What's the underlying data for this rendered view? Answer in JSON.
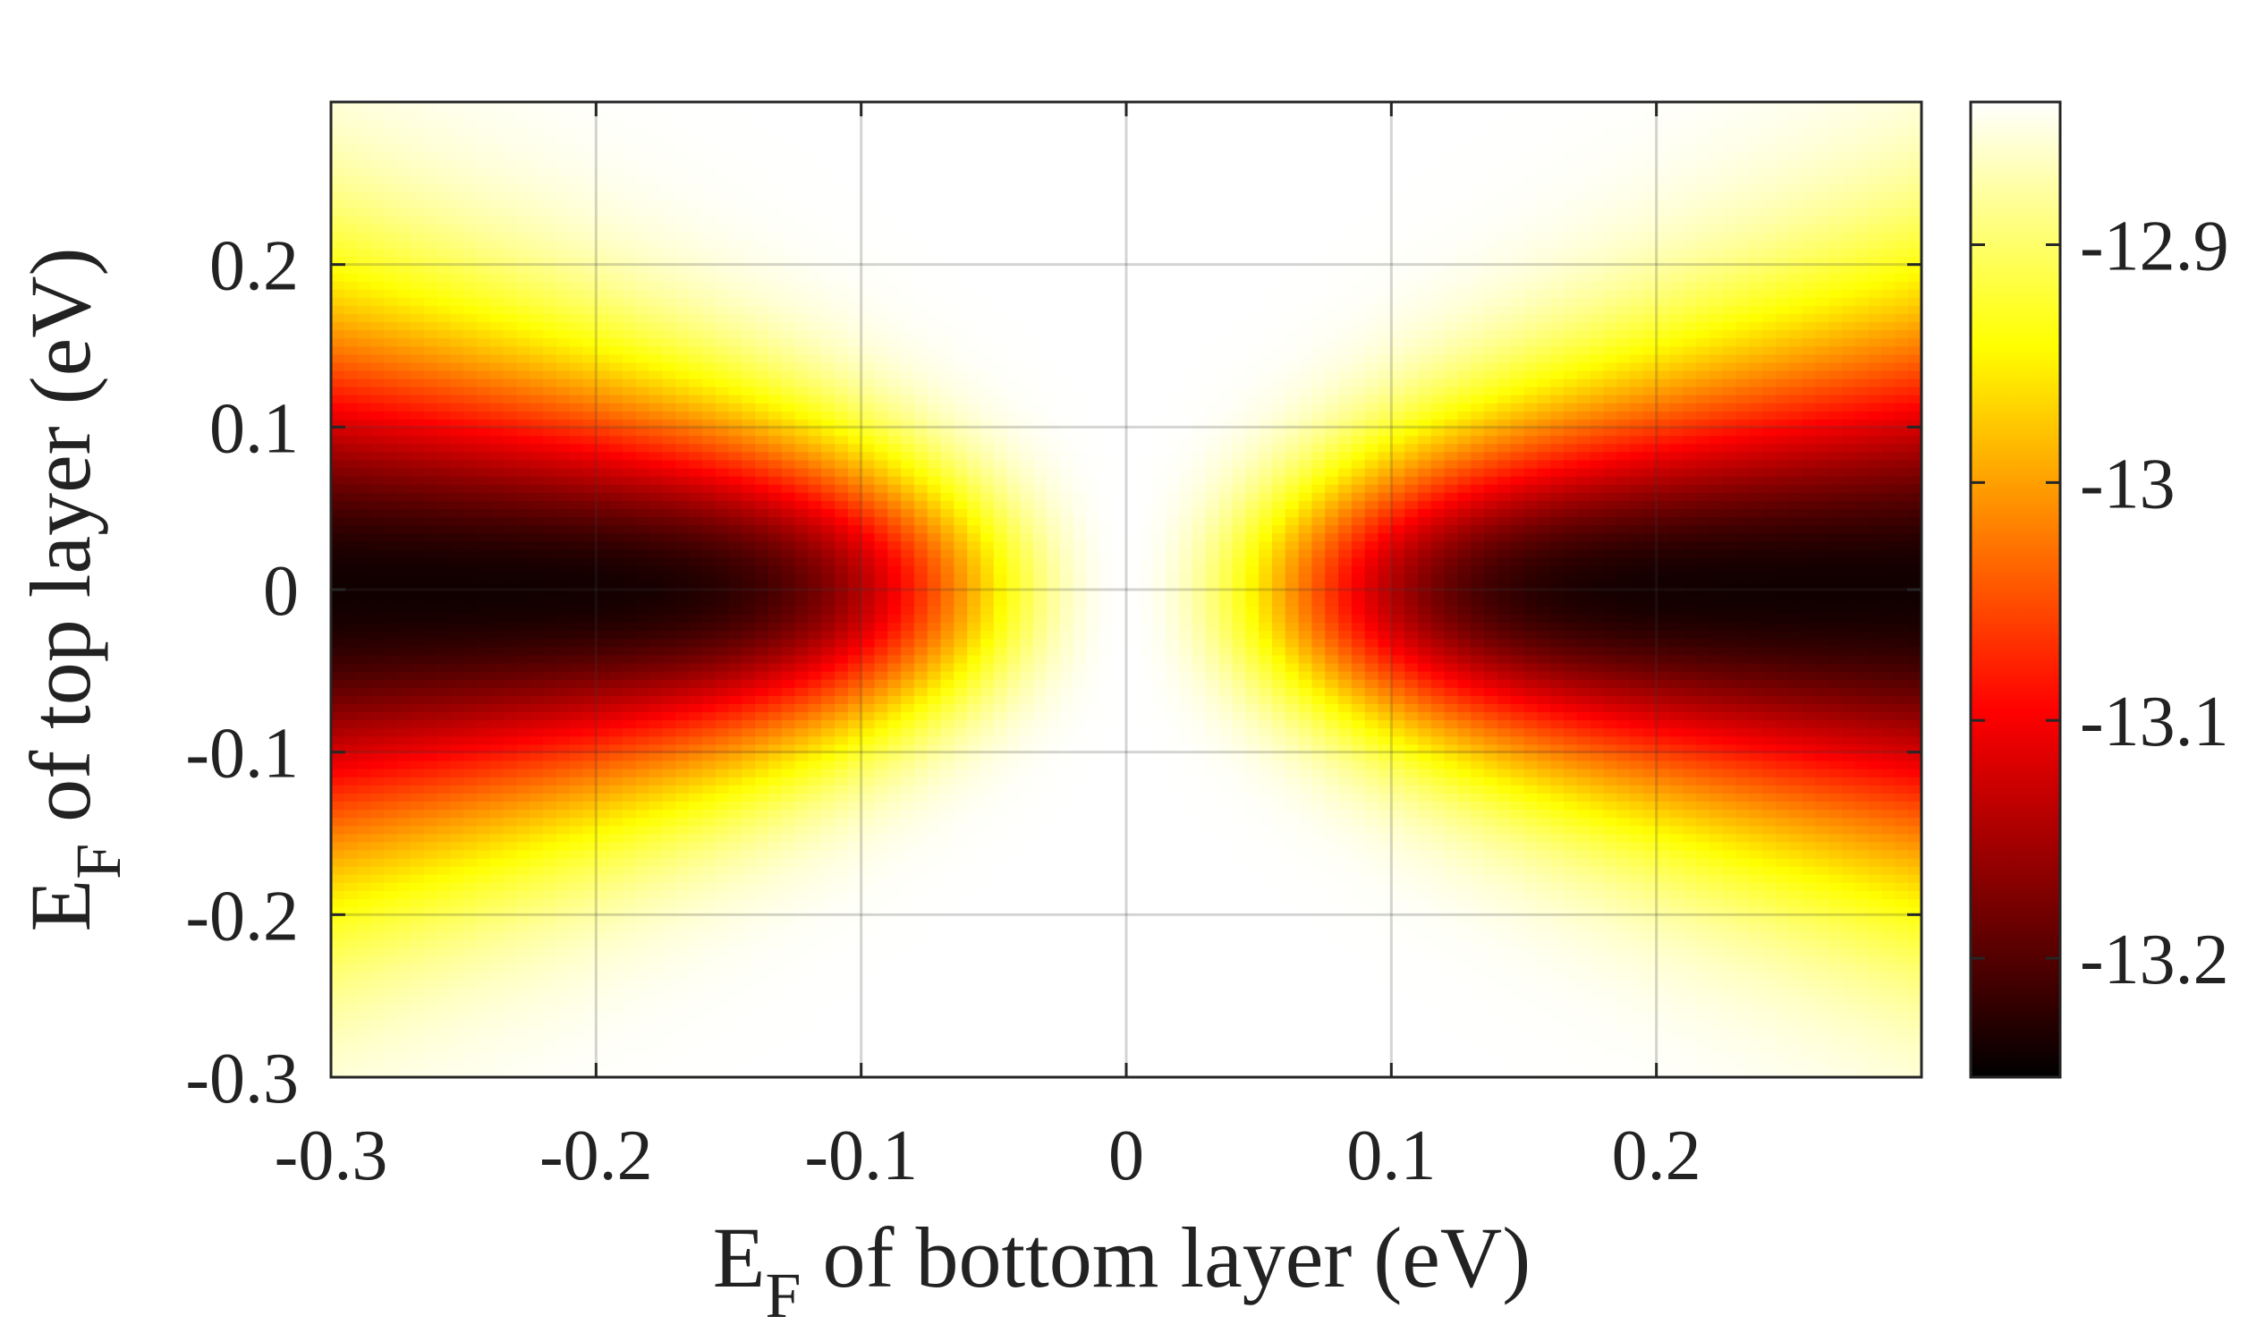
{
  "chart_data": {
    "type": "heatmap",
    "title": "",
    "xlabel": {
      "main": "E",
      "sub": "F",
      "rest": " of bottom layer (eV)"
    },
    "ylabel": {
      "main": "E",
      "sub": "F",
      "rest": " of top layer (eV)"
    },
    "xlim": [
      -0.3,
      0.3
    ],
    "ylim": [
      -0.3,
      0.3
    ],
    "grid": true,
    "x_ticks": [
      -0.3,
      -0.2,
      -0.1,
      0,
      0.1,
      0.2
    ],
    "x_tick_labels": [
      "-0.3",
      "-0.2",
      "-0.1",
      "0",
      "0.1",
      "0.2"
    ],
    "y_ticks": [
      -0.3,
      -0.2,
      -0.1,
      0,
      0.1,
      0.2
    ],
    "y_tick_labels": [
      "-0.3",
      "-0.2",
      "-0.1",
      "0",
      "0.1",
      "0.2"
    ],
    "colormap": "hot",
    "colorbar": {
      "range": [
        -13.25,
        -12.84
      ],
      "ticks": [
        -12.9,
        -13.0,
        -13.1,
        -13.2
      ],
      "tick_labels": [
        "-12.9",
        "-13",
        "-13.1",
        "-13.2"
      ],
      "colors": [
        "#000000",
        "#ff0000",
        "#ffff00",
        "#ffffff"
      ]
    },
    "grid_resolution": 0.005,
    "value_samples": [
      {
        "x": 0.0,
        "y": 0.0,
        "value": -12.85
      },
      {
        "x": -0.1,
        "y": 0.0,
        "value": -13.1
      },
      {
        "x": 0.1,
        "y": 0.0,
        "value": -13.1
      },
      {
        "x": -0.28,
        "y": 0.0,
        "value": -13.24
      },
      {
        "x": 0.28,
        "y": 0.0,
        "value": -13.24
      },
      {
        "x": -0.28,
        "y": 0.1,
        "value": -13.08
      },
      {
        "x": -0.28,
        "y": 0.2,
        "value": -12.92
      },
      {
        "x": -0.1,
        "y": 0.2,
        "value": -12.87
      },
      {
        "x": 0.0,
        "y": 0.2,
        "value": -12.84
      }
    ]
  }
}
